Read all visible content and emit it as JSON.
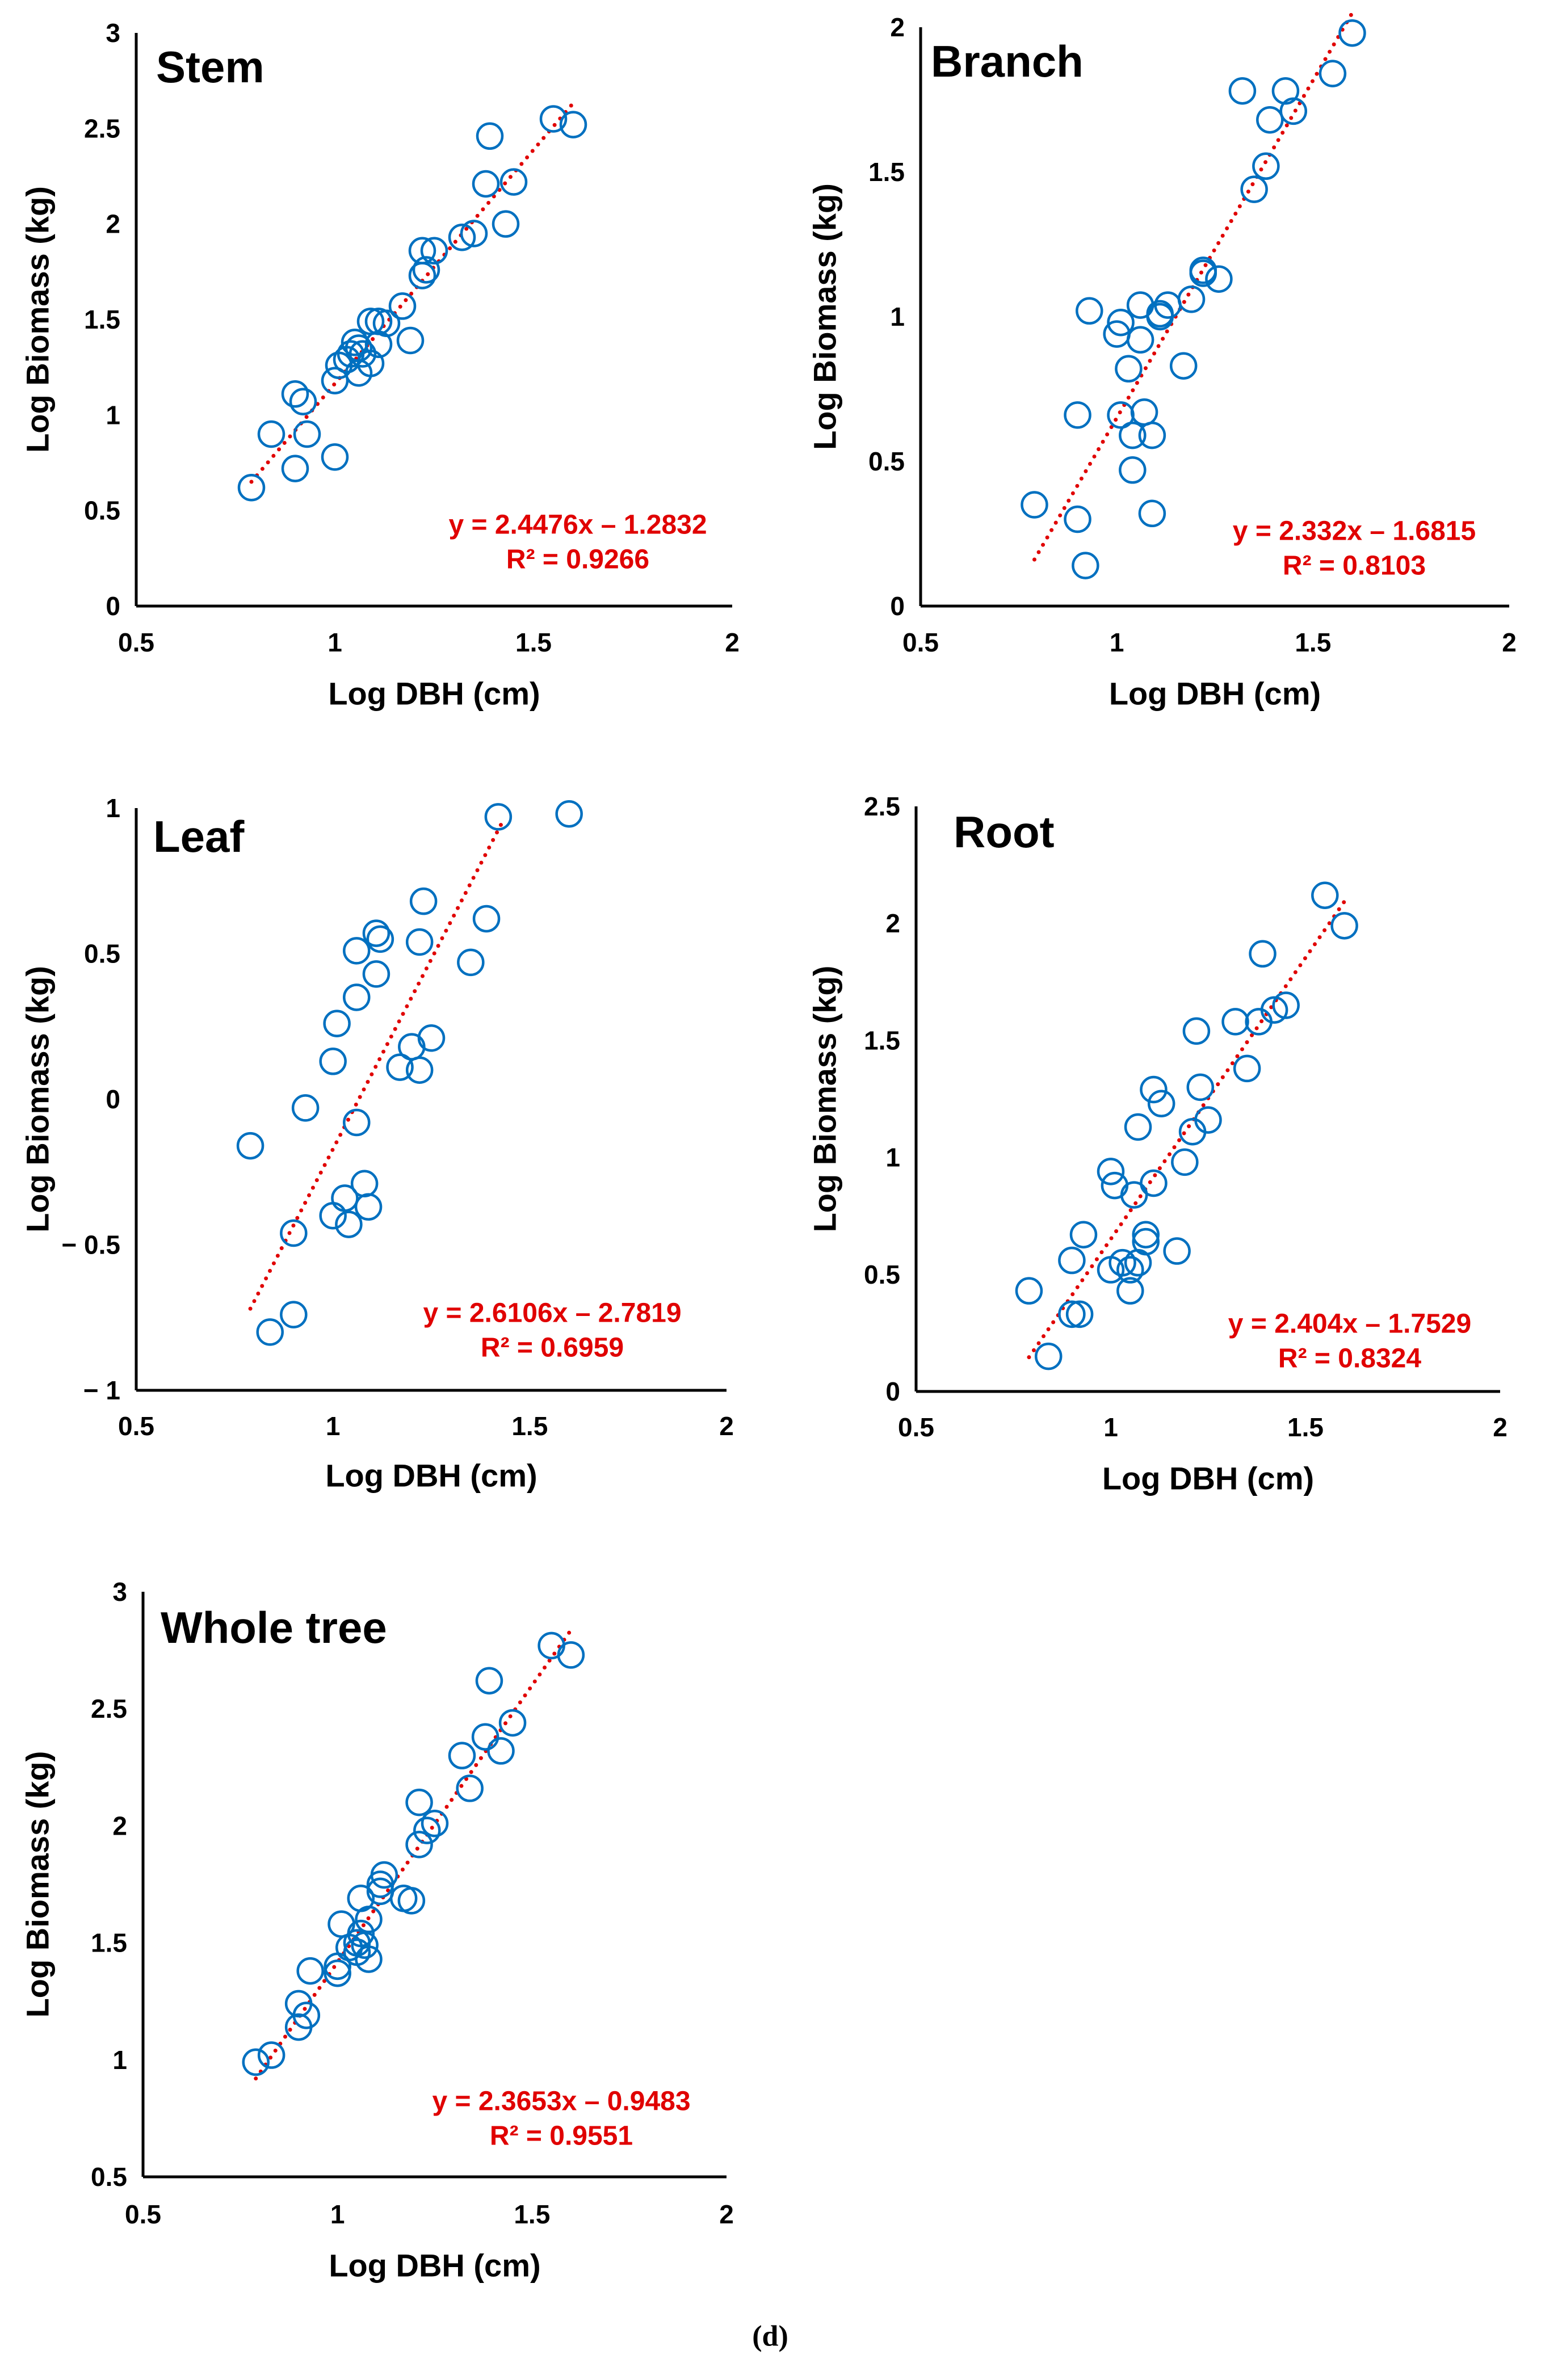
{
  "caption": "(d)",
  "colors": {
    "marker": "#0070C0",
    "trendline": "#E00000",
    "equation": "#E00000"
  },
  "chart_data": [
    {
      "type": "scatter",
      "title": "Stem",
      "xlabel": "Log DBH (cm)",
      "ylabel": "Log Biomass (kg)",
      "xlim": [
        0.5,
        2
      ],
      "ylim": [
        0,
        3
      ],
      "xticks": [
        "0.5",
        "1",
        "1.5",
        "2"
      ],
      "xtick_values": [
        0.5,
        1,
        1.5,
        2
      ],
      "yticks": [
        "0",
        "0.5",
        "1",
        "1.5",
        "2",
        "2.5",
        "3"
      ],
      "ytick_values": [
        0,
        0.5,
        1,
        1.5,
        2,
        2.5,
        3
      ],
      "equation": "y = 2.4476x – 1.2832",
      "r2": "R² = 0.9266",
      "trend": {
        "slope": 2.4476,
        "intercept": -1.2832,
        "x_range": [
          0.79,
          1.6
        ]
      },
      "x": [
        0.79,
        0.84,
        0.9,
        0.93,
        0.9,
        0.92,
        1.0,
        1.0,
        1.01,
        1.03,
        1.05,
        1.04,
        1.06,
        1.07,
        1.06,
        1.09,
        1.11,
        1.09,
        1.11,
        1.13,
        1.17,
        1.19,
        1.22,
        1.23,
        1.22,
        1.25,
        1.32,
        1.35,
        1.43,
        1.38,
        1.45,
        1.39,
        1.55,
        1.6
      ],
      "y": [
        0.62,
        0.9,
        0.72,
        0.9,
        1.11,
        1.07,
        0.78,
        1.18,
        1.26,
        1.29,
        1.38,
        1.32,
        1.35,
        1.32,
        1.22,
        1.27,
        1.37,
        1.49,
        1.49,
        1.48,
        1.57,
        1.39,
        1.73,
        1.76,
        1.86,
        1.86,
        1.93,
        1.95,
        2.0,
        2.21,
        2.22,
        2.46,
        2.55,
        2.52
      ]
    },
    {
      "type": "scatter",
      "title": "Branch",
      "xlabel": "Log DBH (cm)",
      "ylabel": "Log Biomass (kg)",
      "xlim": [
        0.5,
        2
      ],
      "ylim": [
        0,
        2
      ],
      "xticks": [
        "0.5",
        "1",
        "1.5",
        "2"
      ],
      "xtick_values": [
        0.5,
        1,
        1.5,
        2
      ],
      "yticks": [
        "0",
        "0.5",
        "1",
        "1.5",
        "2"
      ],
      "ytick_values": [
        0,
        0.5,
        1,
        1.5,
        2
      ],
      "equation": "y = 2.332x – 1.6815",
      "r2": "R² = 0.8103",
      "trend": {
        "slope": 2.332,
        "intercept": -1.6815,
        "x_range": [
          0.79,
          1.6
        ]
      },
      "x": [
        0.79,
        0.9,
        0.92,
        0.9,
        0.93,
        1.01,
        1.0,
        1.01,
        1.03,
        1.06,
        1.06,
        1.04,
        1.07,
        1.09,
        1.04,
        1.09,
        1.11,
        1.11,
        1.13,
        1.17,
        1.19,
        1.22,
        1.22,
        1.26,
        1.35,
        1.38,
        1.32,
        1.39,
        1.43,
        1.45,
        1.55,
        1.6
      ],
      "y": [
        0.35,
        0.3,
        0.14,
        0.66,
        1.02,
        0.98,
        0.94,
        0.66,
        0.82,
        0.92,
        1.04,
        0.59,
        0.67,
        0.59,
        0.47,
        0.32,
        1.01,
        1.0,
        1.04,
        0.83,
        1.06,
        1.16,
        1.15,
        1.13,
        1.44,
        1.52,
        1.78,
        1.68,
        1.78,
        1.71,
        1.84,
        1.98
      ]
    },
    {
      "type": "scatter",
      "title": "Leaf",
      "xlabel": "Log DBH (cm)",
      "ylabel": "Log Biomass (kg)",
      "xlim": [
        0.5,
        2
      ],
      "ylim": [
        -1,
        1
      ],
      "xticks": [
        "0.5",
        "1",
        "1.5",
        "2"
      ],
      "xtick_values": [
        0.5,
        1,
        1.5,
        2
      ],
      "yticks": [
        "− 1",
        "− 0.5",
        "0",
        "0.5",
        "1"
      ],
      "ytick_values": [
        -1,
        -0.5,
        0,
        0.5,
        1
      ],
      "equation": "y = 2.6106x – 2.7819",
      "r2": "R² = 0.6959",
      "trend": {
        "slope": 2.6106,
        "intercept": -2.7819,
        "x_range": [
          0.79,
          1.43
        ]
      },
      "x": [
        0.79,
        0.84,
        0.9,
        0.9,
        0.93,
        1.0,
        1.01,
        1.06,
        1.06,
        1.06,
        1.11,
        1.11,
        1.12,
        1.0,
        1.03,
        1.04,
        1.08,
        1.09,
        1.17,
        1.2,
        1.22,
        1.22,
        1.23,
        1.25,
        1.35,
        1.39,
        1.42,
        1.6
      ],
      "y": [
        -0.16,
        -0.8,
        -0.74,
        -0.46,
        -0.03,
        0.13,
        0.26,
        0.35,
        0.51,
        -0.08,
        0.43,
        0.57,
        0.55,
        -0.4,
        -0.34,
        -0.43,
        -0.29,
        -0.37,
        0.11,
        0.18,
        0.1,
        0.54,
        0.68,
        0.21,
        0.47,
        0.62,
        0.97,
        0.98
      ]
    },
    {
      "type": "scatter",
      "title": "Root",
      "xlabel": "Log DBH (cm)",
      "ylabel": "Log Biomass (kg)",
      "xlim": [
        0.5,
        2
      ],
      "ylim": [
        0,
        2.5
      ],
      "xticks": [
        "0.5",
        "1",
        "1.5",
        "2"
      ],
      "xtick_values": [
        0.5,
        1,
        1.5,
        2
      ],
      "yticks": [
        "0",
        "0.5",
        "1",
        "1.5",
        "2",
        "2.5"
      ],
      "ytick_values": [
        0,
        0.5,
        1,
        1.5,
        2,
        2.5
      ],
      "equation": "y = 2.404x – 1.7529",
      "r2": "R² = 0.8324",
      "trend": {
        "slope": 2.404,
        "intercept": -1.7529,
        "x_range": [
          0.79,
          1.6
        ]
      },
      "x": [
        0.79,
        0.84,
        0.9,
        0.9,
        0.92,
        0.93,
        1.0,
        1.01,
        1.0,
        1.03,
        1.05,
        1.05,
        1.07,
        1.06,
        1.07,
        1.09,
        1.09,
        1.11,
        1.11,
        1.13,
        1.17,
        1.19,
        1.21,
        1.25,
        1.23,
        1.22,
        1.32,
        1.35,
        1.38,
        1.42,
        1.45,
        1.39,
        1.55,
        1.6
      ],
      "y": [
        0.43,
        0.15,
        0.56,
        0.33,
        0.33,
        0.67,
        0.94,
        0.88,
        0.52,
        0.55,
        0.43,
        0.52,
        0.55,
        0.84,
        1.13,
        0.67,
        0.64,
        0.89,
        1.29,
        1.23,
        0.6,
        0.98,
        1.11,
        1.16,
        1.3,
        1.54,
        1.58,
        1.38,
        1.58,
        1.63,
        1.65,
        1.87,
        2.12,
        1.99
      ]
    },
    {
      "type": "scatter",
      "title": "Whole tree",
      "xlabel": "Log DBH (cm)",
      "ylabel": "Log Biomass (kg)",
      "xlim": [
        0.5,
        2
      ],
      "ylim": [
        0.5,
        3
      ],
      "xticks": [
        "0.5",
        "1",
        "1.5",
        "2"
      ],
      "xtick_values": [
        0.5,
        1,
        1.5,
        2
      ],
      "yticks": [
        "0.5",
        "1",
        "1.5",
        "2",
        "2.5",
        "3"
      ],
      "ytick_values": [
        0.5,
        1,
        1.5,
        2,
        2.5,
        3
      ],
      "equation": "y = 2.3653x – 0.9483",
      "r2": "R² = 0.9551",
      "trend": {
        "slope": 2.3653,
        "intercept": -0.9483,
        "x_range": [
          0.79,
          1.6
        ]
      },
      "x": [
        0.79,
        0.83,
        0.9,
        0.9,
        0.92,
        0.93,
        1.0,
        1.0,
        1.01,
        1.03,
        1.05,
        1.05,
        1.06,
        1.07,
        1.08,
        1.08,
        1.06,
        1.11,
        1.12,
        1.11,
        1.17,
        1.19,
        1.21,
        1.23,
        1.25,
        1.21,
        1.34,
        1.32,
        1.38,
        1.42,
        1.45,
        1.39,
        1.55,
        1.6
      ],
      "y": [
        0.99,
        1.02,
        1.24,
        1.14,
        1.19,
        1.38,
        1.37,
        1.4,
        1.58,
        1.48,
        1.46,
        1.5,
        1.54,
        1.49,
        1.43,
        1.6,
        1.69,
        1.75,
        1.79,
        1.72,
        1.69,
        1.68,
        1.92,
        1.98,
        2.01,
        2.1,
        2.16,
        2.3,
        2.38,
        2.32,
        2.44,
        2.62,
        2.77,
        2.73
      ]
    }
  ]
}
